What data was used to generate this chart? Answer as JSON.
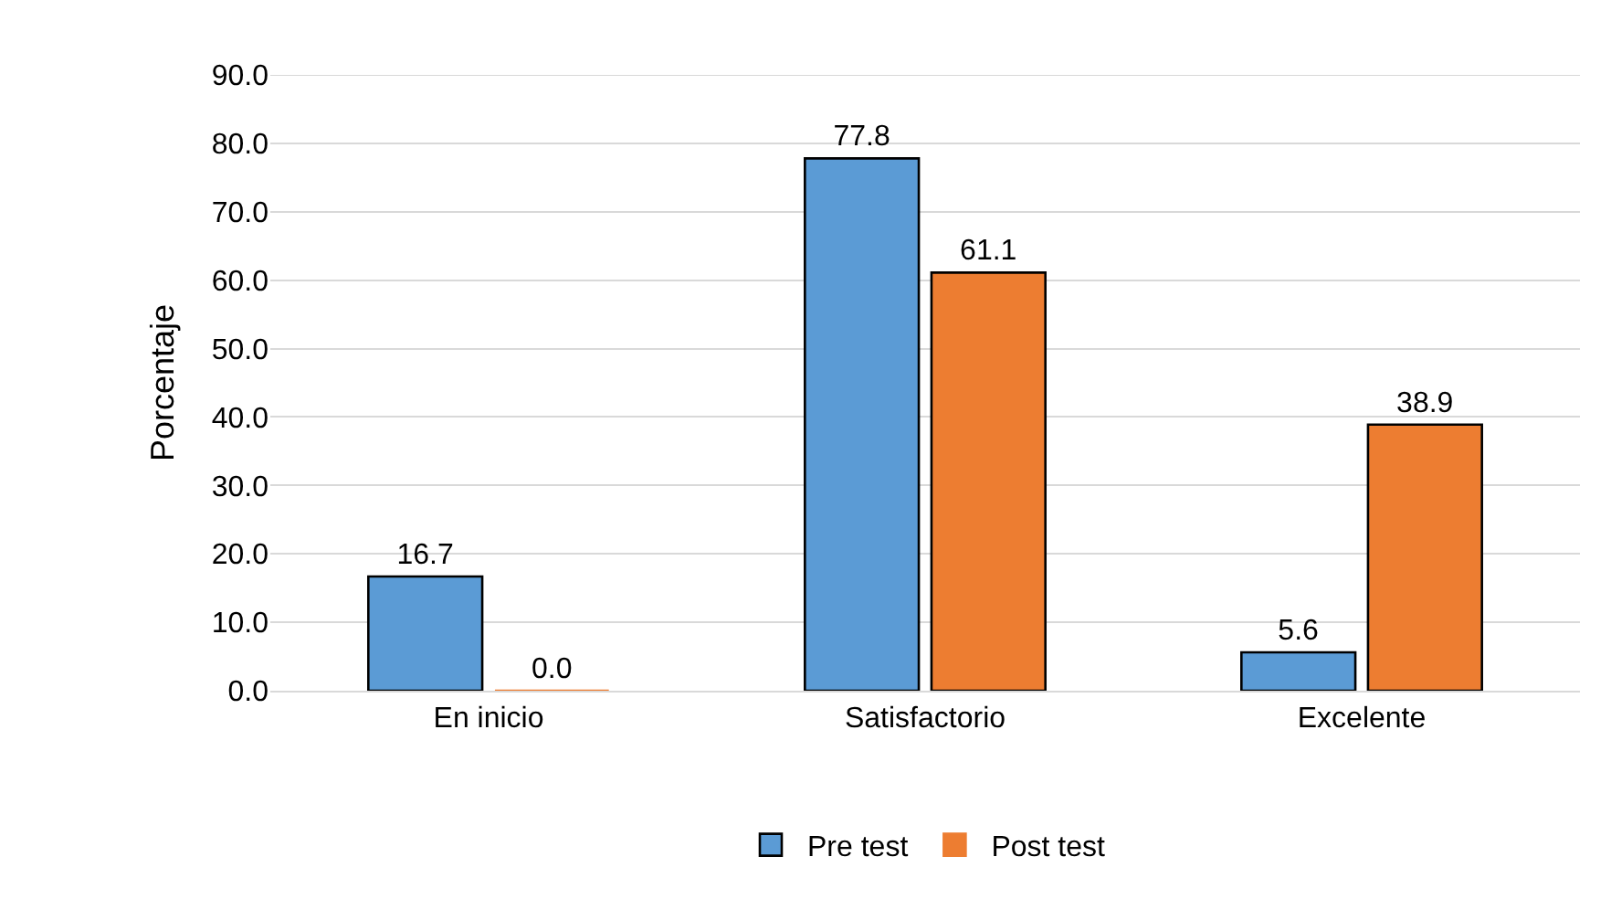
{
  "chart_data": {
    "type": "bar",
    "ylabel": "Porcentaje",
    "categories": [
      "En inicio",
      "Satisfactorio",
      "Excelente"
    ],
    "series": [
      {
        "name": "Pre test",
        "color": "#5b9bd5",
        "values": [
          16.7,
          77.8,
          5.6
        ],
        "value_labels": [
          "16.7",
          "77.8",
          "5.6"
        ]
      },
      {
        "name": "Post test",
        "color": "#ed7d31",
        "values": [
          0.0,
          61.1,
          38.9
        ],
        "value_labels": [
          "0.0",
          "61.1",
          "38.9"
        ]
      }
    ],
    "ylim": [
      0,
      90
    ],
    "yticks": [
      {
        "value": 0,
        "label": "0.0"
      },
      {
        "value": 10,
        "label": "10.0"
      },
      {
        "value": 20,
        "label": "20.0"
      },
      {
        "value": 30,
        "label": "30.0"
      },
      {
        "value": 40,
        "label": "40.0"
      },
      {
        "value": 50,
        "label": "50.0"
      },
      {
        "value": 60,
        "label": "60.0"
      },
      {
        "value": 70,
        "label": "70.0"
      },
      {
        "value": 80,
        "label": "80.0"
      },
      {
        "value": 90,
        "label": "90.0"
      }
    ],
    "grid": "y",
    "legend": "bottom"
  }
}
